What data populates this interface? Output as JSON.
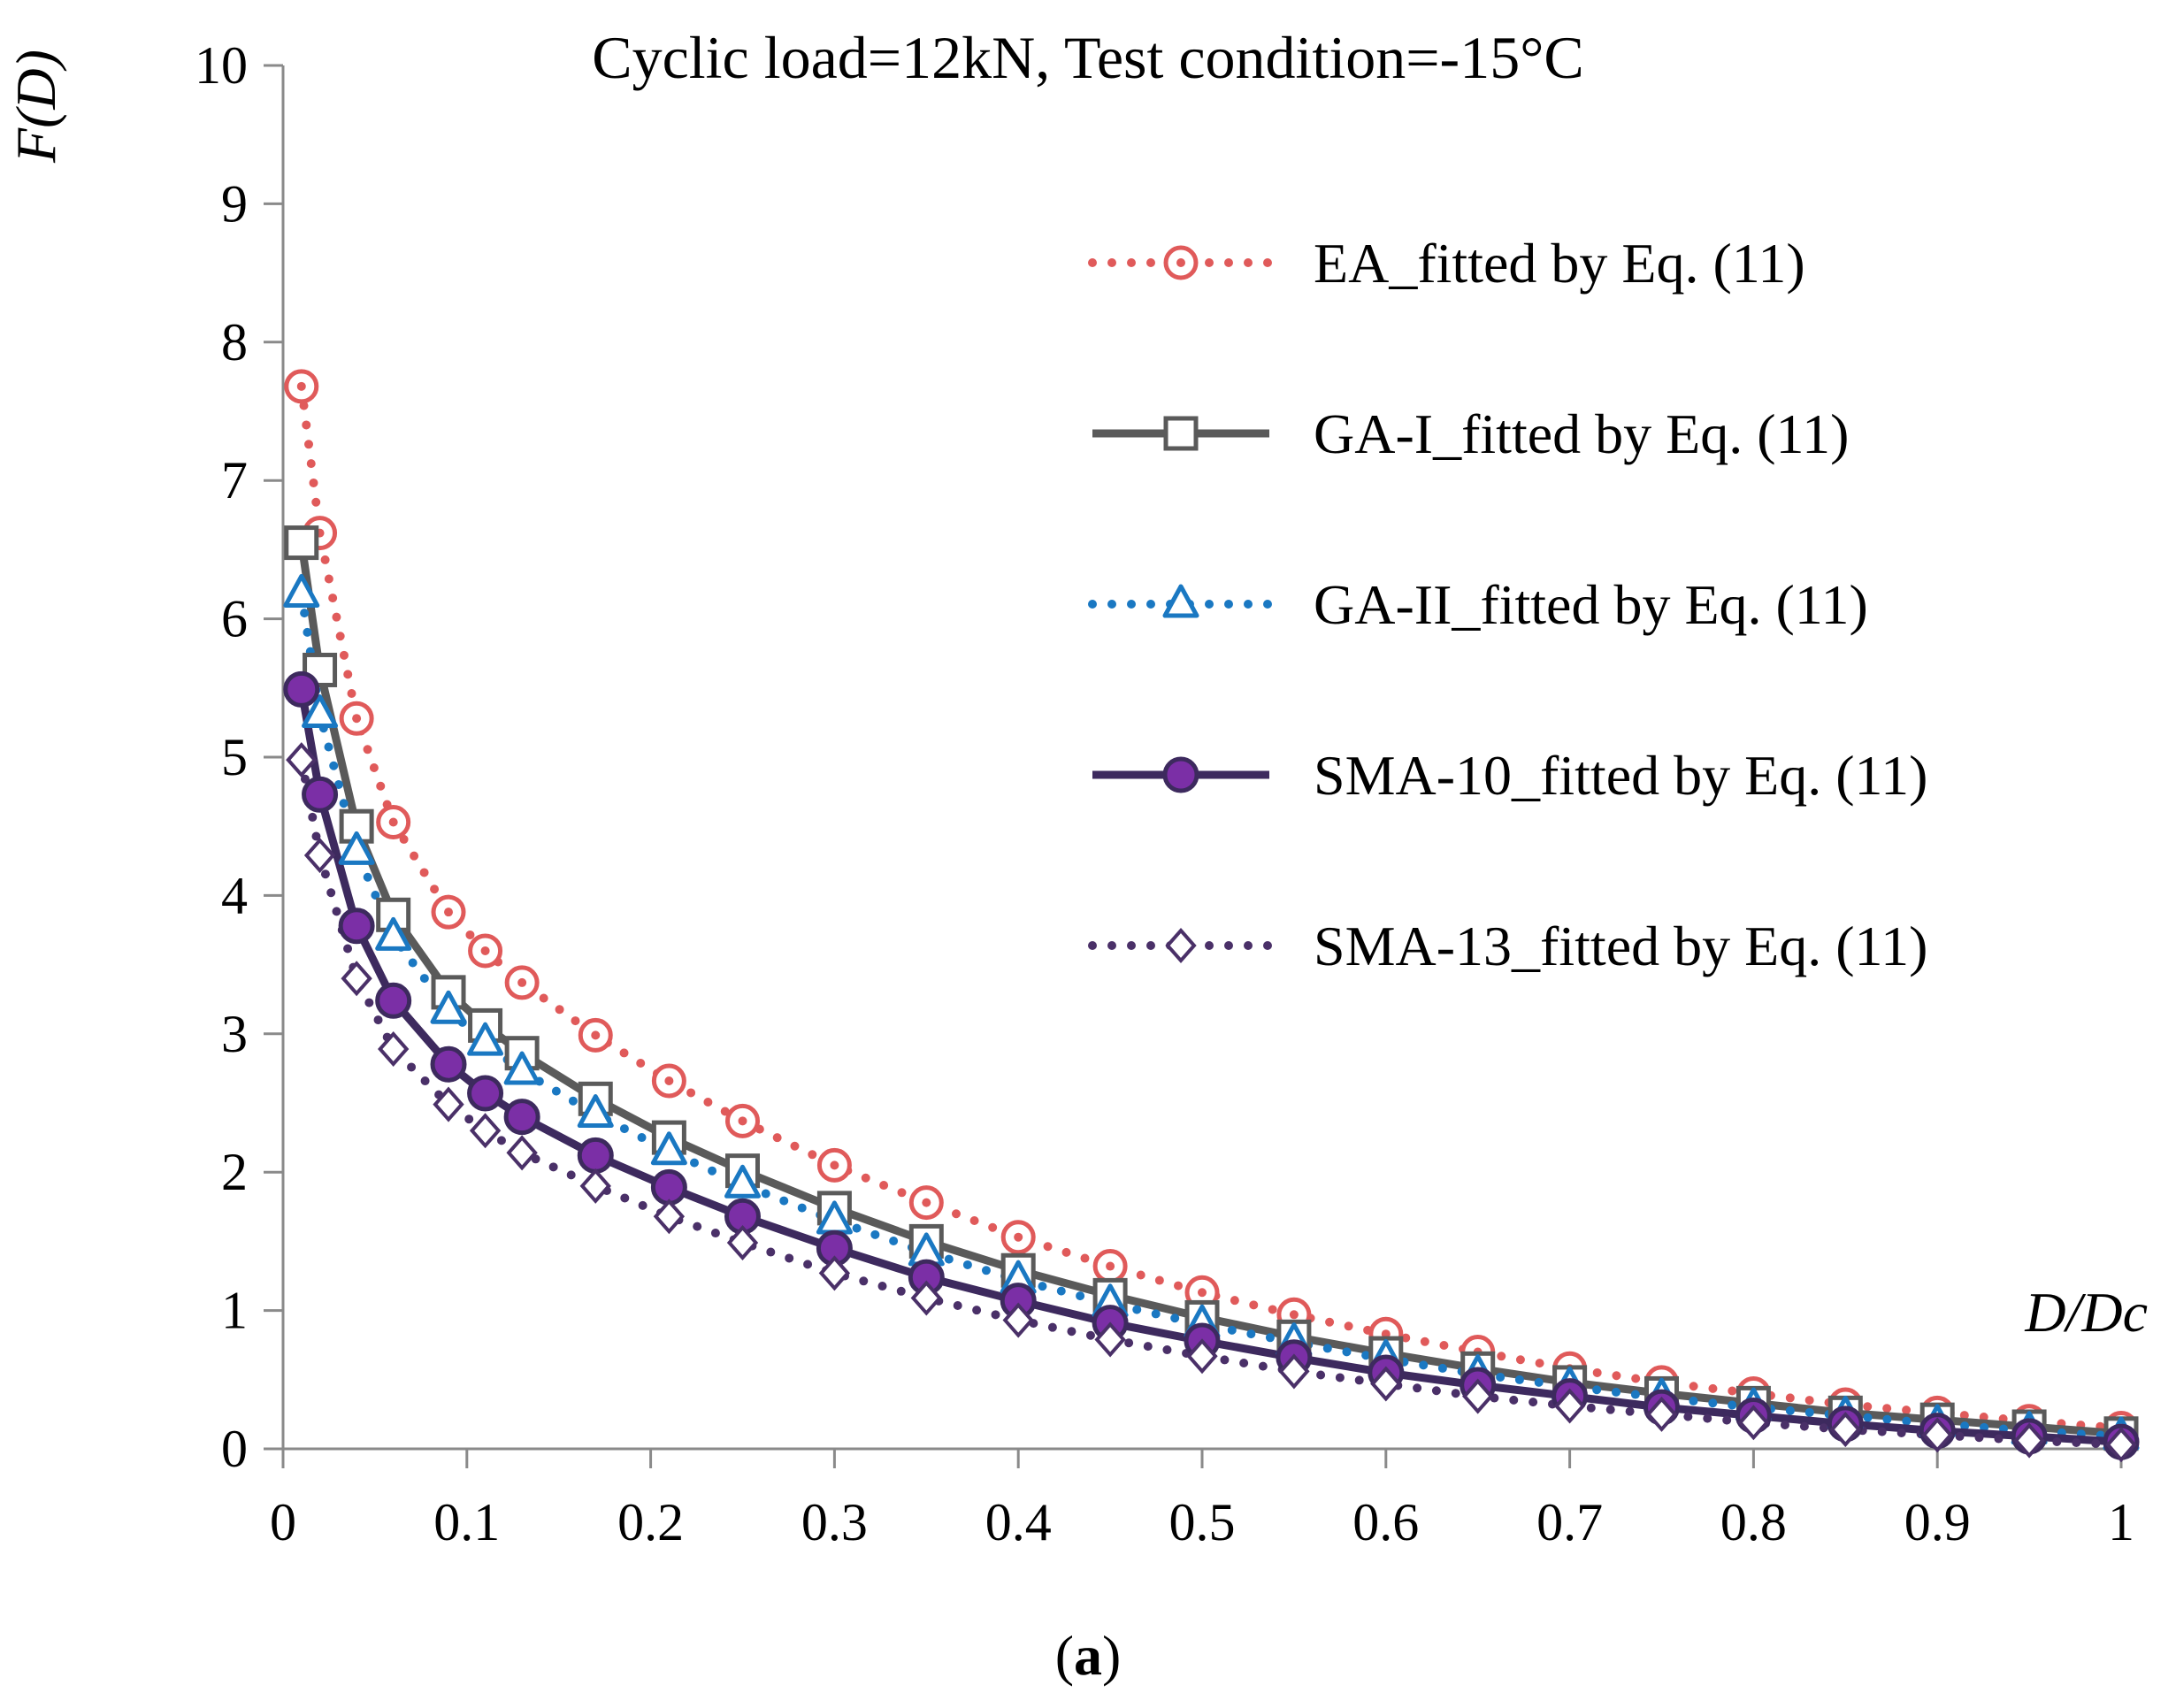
{
  "chart_data": {
    "type": "line",
    "title": "Cyclic load=12kN, Test condition=-15°C",
    "xlabel": "D/Dc",
    "ylabel": "F(D)",
    "caption": {
      "open": "(",
      "letter": "a",
      "close": ")"
    },
    "xlim": [
      0,
      1
    ],
    "ylim": [
      0,
      10
    ],
    "xticks": [
      "0",
      "0.1",
      "0.2",
      "0.3",
      "0.4",
      "0.5",
      "0.6",
      "0.7",
      "0.8",
      "0.9",
      "1"
    ],
    "yticks": [
      "0",
      "1",
      "2",
      "3",
      "4",
      "5",
      "6",
      "7",
      "8",
      "9",
      "10"
    ],
    "legend_position": "top-right",
    "x": [
      0.01,
      0.02,
      0.04,
      0.06,
      0.09,
      0.11,
      0.13,
      0.17,
      0.21,
      0.25,
      0.3,
      0.35,
      0.4,
      0.45,
      0.5,
      0.55,
      0.6,
      0.65,
      0.7,
      0.75,
      0.8,
      0.85,
      0.9,
      0.95,
      1.0
    ],
    "series": [
      {
        "name": "EA_fitted by Eq. (11)",
        "color": "#e05a5a",
        "line": "dotted",
        "marker": "circle-open",
        "values": [
          7.68,
          6.62,
          5.28,
          4.53,
          3.88,
          3.6,
          3.37,
          2.99,
          2.66,
          2.37,
          2.05,
          1.78,
          1.53,
          1.32,
          1.13,
          0.97,
          0.83,
          0.7,
          0.58,
          0.48,
          0.4,
          0.32,
          0.26,
          0.2,
          0.15
        ]
      },
      {
        "name": "GA-I_fitted by Eq. (11)",
        "color": "#5a5a5a",
        "line": "solid",
        "marker": "square-open",
        "values": [
          6.55,
          5.63,
          4.5,
          3.86,
          3.3,
          3.06,
          2.86,
          2.53,
          2.25,
          2.01,
          1.74,
          1.5,
          1.29,
          1.11,
          0.95,
          0.81,
          0.69,
          0.58,
          0.48,
          0.4,
          0.33,
          0.26,
          0.21,
          0.16,
          0.11
        ]
      },
      {
        "name": "GA-II_fitted by Eq. (11)",
        "color": "#1a78c2",
        "line": "dotted",
        "marker": "triangle-open",
        "values": [
          6.18,
          5.31,
          4.32,
          3.7,
          3.17,
          2.94,
          2.73,
          2.42,
          2.15,
          1.91,
          1.65,
          1.42,
          1.22,
          1.05,
          0.9,
          0.77,
          0.65,
          0.54,
          0.45,
          0.37,
          0.3,
          0.24,
          0.18,
          0.13,
          0.09
        ]
      },
      {
        "name": "SMA-10_fitted by Eq. (11)",
        "color": "#3d2a5e",
        "fill": "#7b2fa6",
        "line": "solid",
        "marker": "circle-filled",
        "values": [
          5.49,
          4.73,
          3.78,
          3.24,
          2.78,
          2.57,
          2.4,
          2.12,
          1.89,
          1.68,
          1.45,
          1.24,
          1.07,
          0.91,
          0.78,
          0.66,
          0.55,
          0.46,
          0.38,
          0.3,
          0.24,
          0.18,
          0.13,
          0.09,
          0.05
        ]
      },
      {
        "name": "SMA-13_fitted by Eq. (11)",
        "color": "#4a3068",
        "line": "dotted",
        "marker": "diamond-open",
        "values": [
          4.98,
          4.29,
          3.4,
          2.89,
          2.49,
          2.3,
          2.14,
          1.9,
          1.68,
          1.49,
          1.27,
          1.09,
          0.93,
          0.79,
          0.67,
          0.56,
          0.47,
          0.38,
          0.31,
          0.25,
          0.19,
          0.14,
          0.1,
          0.06,
          0.03
        ]
      }
    ]
  }
}
